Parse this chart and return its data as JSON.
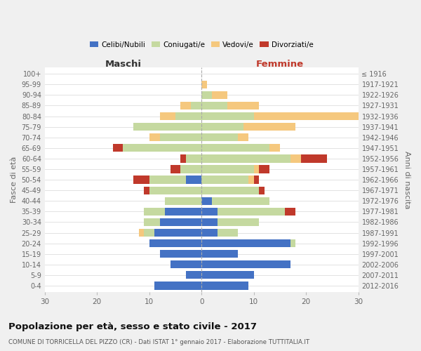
{
  "age_groups": [
    "0-4",
    "5-9",
    "10-14",
    "15-19",
    "20-24",
    "25-29",
    "30-34",
    "35-39",
    "40-44",
    "45-49",
    "50-54",
    "55-59",
    "60-64",
    "65-69",
    "70-74",
    "75-79",
    "80-84",
    "85-89",
    "90-94",
    "95-99",
    "100+"
  ],
  "birth_years": [
    "2012-2016",
    "2007-2011",
    "2002-2006",
    "1997-2001",
    "1992-1996",
    "1987-1991",
    "1982-1986",
    "1977-1981",
    "1972-1976",
    "1967-1971",
    "1962-1966",
    "1957-1961",
    "1952-1956",
    "1947-1951",
    "1942-1946",
    "1937-1941",
    "1932-1936",
    "1927-1931",
    "1922-1926",
    "1917-1921",
    "≤ 1916"
  ],
  "males": {
    "celibi": [
      9,
      3,
      6,
      8,
      10,
      9,
      8,
      7,
      0,
      0,
      3,
      0,
      0,
      0,
      0,
      0,
      0,
      0,
      0,
      0,
      0
    ],
    "coniugati": [
      0,
      0,
      0,
      0,
      0,
      2,
      3,
      4,
      7,
      10,
      7,
      4,
      3,
      15,
      8,
      13,
      5,
      2,
      0,
      0,
      0
    ],
    "vedovi": [
      0,
      0,
      0,
      0,
      0,
      1,
      0,
      0,
      0,
      0,
      0,
      0,
      0,
      0,
      2,
      0,
      3,
      2,
      0,
      0,
      0
    ],
    "divorziati": [
      0,
      0,
      0,
      0,
      0,
      0,
      0,
      0,
      0,
      1,
      3,
      2,
      1,
      2,
      0,
      0,
      0,
      0,
      0,
      0,
      0
    ]
  },
  "females": {
    "nubili": [
      9,
      10,
      17,
      7,
      17,
      3,
      3,
      3,
      2,
      0,
      0,
      0,
      0,
      0,
      0,
      0,
      0,
      0,
      0,
      0,
      0
    ],
    "coniugate": [
      0,
      0,
      0,
      0,
      1,
      4,
      8,
      13,
      11,
      11,
      9,
      10,
      17,
      13,
      7,
      8,
      10,
      5,
      2,
      0,
      0
    ],
    "vedove": [
      0,
      0,
      0,
      0,
      0,
      0,
      0,
      0,
      0,
      0,
      1,
      1,
      2,
      2,
      2,
      10,
      20,
      6,
      3,
      1,
      0
    ],
    "divorziate": [
      0,
      0,
      0,
      0,
      0,
      0,
      0,
      2,
      0,
      1,
      1,
      2,
      5,
      0,
      0,
      0,
      0,
      0,
      0,
      0,
      0
    ]
  },
  "colors": {
    "celibi": "#4472c4",
    "coniugati": "#c5d9a0",
    "vedovi": "#f5c87e",
    "divorziati": "#c0392b"
  },
  "xlim": 30,
  "title": "Popolazione per età, sesso e stato civile - 2017",
  "subtitle": "COMUNE DI TORRICELLA DEL PIZZO (CR) - Dati ISTAT 1° gennaio 2017 - Elaborazione TUTTITALIA.IT",
  "ylabel_left": "Fasce di età",
  "ylabel_right": "Anni di nascita",
  "xlabel_left": "Maschi",
  "xlabel_right": "Femmine",
  "bg_color": "#f0f0f0",
  "plot_bg": "#ffffff"
}
